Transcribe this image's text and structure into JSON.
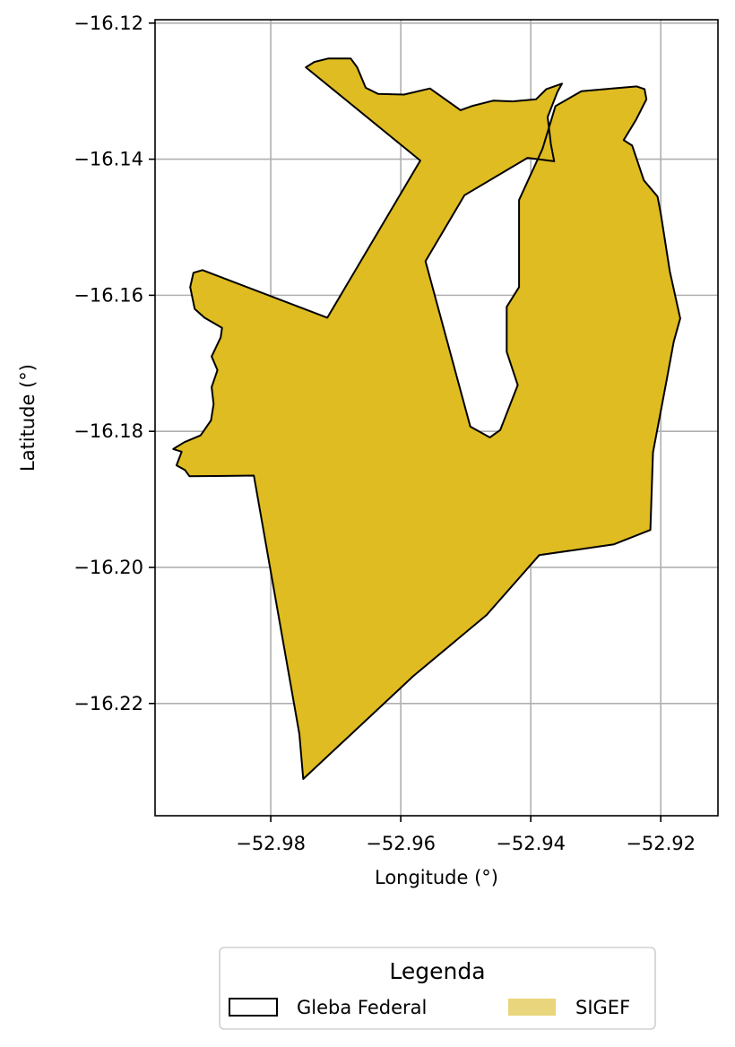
{
  "axes": {
    "xlabel": "Longitude (°)",
    "ylabel": "Latitude (°)",
    "xlim": [
      -52.9978,
      -52.9112
    ],
    "ylim": [
      -16.2365,
      -16.1195
    ],
    "xticks": [
      -52.98,
      -52.96,
      -52.94,
      -52.92
    ],
    "xtick_labels": [
      "−52.98",
      "−52.96",
      "−52.94",
      "−52.92"
    ],
    "yticks": [
      -16.12,
      -16.14,
      -16.16,
      -16.18,
      -16.2,
      -16.22
    ],
    "ytick_labels": [
      "−16.12",
      "−16.14",
      "−16.16",
      "−16.18",
      "−16.20",
      "−16.22"
    ],
    "grid": true,
    "grid_color": "#b0b0b0"
  },
  "legend": {
    "title": "Legenda",
    "placement": "bottom-center, below the map",
    "items": [
      {
        "label": "Gleba Federal",
        "style": "outline",
        "edge_color": "#000000",
        "fill_color": "#ffffff"
      },
      {
        "label": "SIGEF",
        "style": "filled",
        "fill_color": "#e9d57b"
      }
    ]
  },
  "colors": {
    "parcel_fill": "#dfbc21",
    "parcel_edge": "#000000",
    "frame": "#000000",
    "background": "#ffffff"
  },
  "chart_data": {
    "type": "map",
    "crs": "geographic lon/lat (degrees)",
    "layers": [
      {
        "name": "Gleba Federal",
        "geometry": "polygon",
        "fill": "#dfbc21",
        "edge": "#000000",
        "coordinates": [
          [
            -52.975,
            -16.2311
          ],
          [
            -52.9756,
            -16.2245
          ],
          [
            -52.9826,
            -16.1865
          ],
          [
            -52.9925,
            -16.1866
          ],
          [
            -52.9932,
            -16.1857
          ],
          [
            -52.9945,
            -16.185
          ],
          [
            -52.9937,
            -16.183
          ],
          [
            -52.995,
            -16.1826
          ],
          [
            -52.9933,
            -16.1816
          ],
          [
            -52.9908,
            -16.1806
          ],
          [
            -52.9892,
            -16.1784
          ],
          [
            -52.9888,
            -16.176
          ],
          [
            -52.9891,
            -16.1735
          ],
          [
            -52.9882,
            -16.171
          ],
          [
            -52.9891,
            -16.169
          ],
          [
            -52.9877,
            -16.1662
          ],
          [
            -52.9875,
            -16.1648
          ],
          [
            -52.9902,
            -16.1633
          ],
          [
            -52.9917,
            -16.162
          ],
          [
            -52.9924,
            -16.1588
          ],
          [
            -52.9919,
            -16.1567
          ],
          [
            -52.9905,
            -16.1563
          ],
          [
            -52.9713,
            -16.1633
          ],
          [
            -52.957,
            -16.1402
          ],
          [
            -52.9746,
            -16.1265
          ],
          [
            -52.9733,
            -16.1257
          ],
          [
            -52.9712,
            -16.1252
          ],
          [
            -52.9677,
            -16.1252
          ],
          [
            -52.9667,
            -16.1265
          ],
          [
            -52.9654,
            -16.1295
          ],
          [
            -52.9635,
            -16.1304
          ],
          [
            -52.9595,
            -16.1305
          ],
          [
            -52.9555,
            -16.1296
          ],
          [
            -52.9508,
            -16.1328
          ],
          [
            -52.9491,
            -16.1322
          ],
          [
            -52.9458,
            -16.1314
          ],
          [
            -52.9428,
            -16.1315
          ],
          [
            -52.9392,
            -16.1312
          ],
          [
            -52.9376,
            -16.1297
          ],
          [
            -52.9352,
            -16.1289
          ],
          [
            -52.9359,
            -16.1301
          ],
          [
            -52.9374,
            -16.1338
          ],
          [
            -52.9369,
            -16.1378
          ],
          [
            -52.9364,
            -16.1403
          ],
          [
            -52.9405,
            -16.1398
          ],
          [
            -52.9502,
            -16.1453
          ],
          [
            -52.9562,
            -16.155
          ],
          [
            -52.9493,
            -16.1793
          ],
          [
            -52.9463,
            -16.1809
          ],
          [
            -52.9447,
            -16.1798
          ],
          [
            -52.942,
            -16.1732
          ],
          [
            -52.9437,
            -16.1683
          ],
          [
            -52.9437,
            -16.1617
          ],
          [
            -52.9418,
            -16.1588
          ],
          [
            -52.9418,
            -16.146
          ],
          [
            -52.9382,
            -16.1385
          ],
          [
            -52.9362,
            -16.1322
          ],
          [
            -52.9322,
            -16.13
          ],
          [
            -52.9275,
            -16.1296
          ],
          [
            -52.9237,
            -16.1293
          ],
          [
            -52.9225,
            -16.1297
          ],
          [
            -52.9222,
            -16.1312
          ],
          [
            -52.9238,
            -16.1342
          ],
          [
            -52.9257,
            -16.1372
          ],
          [
            -52.9244,
            -16.138
          ],
          [
            -52.9226,
            -16.1431
          ],
          [
            -52.9205,
            -16.1455
          ],
          [
            -52.92,
            -16.148
          ],
          [
            -52.9186,
            -16.1565
          ],
          [
            -52.917,
            -16.1634
          ],
          [
            -52.918,
            -16.1668
          ],
          [
            -52.9191,
            -16.1725
          ],
          [
            -52.9212,
            -16.1831
          ],
          [
            -52.9216,
            -16.1945
          ],
          [
            -52.9272,
            -16.1966
          ],
          [
            -52.9387,
            -16.1982
          ],
          [
            -52.9468,
            -16.207
          ],
          [
            -52.9581,
            -16.216
          ]
        ]
      }
    ]
  }
}
